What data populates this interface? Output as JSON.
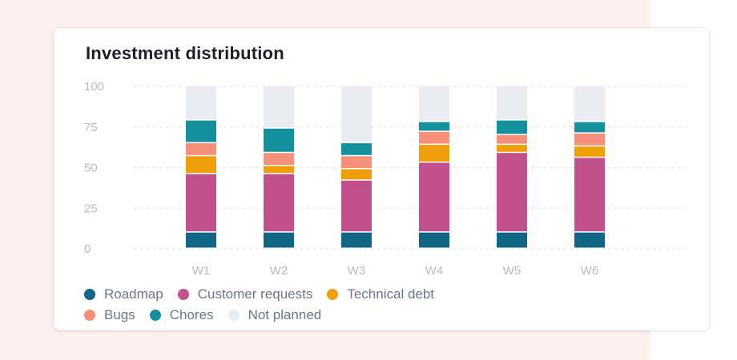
{
  "card": {
    "title": "Investment distribution"
  },
  "colors": {
    "Roadmap": "#0f6685",
    "Customer requests": "#c2508a",
    "Technical debt": "#ef9f0b",
    "Bugs": "#f6907a",
    "Chores": "#14919d",
    "Not planned": "#e9edf1"
  },
  "chart_data": {
    "type": "bar",
    "stacked": true,
    "categories": [
      "W1",
      "W2",
      "W3",
      "W4",
      "W5",
      "W6"
    ],
    "ylim": [
      0,
      100
    ],
    "yticks": [
      0,
      25,
      50,
      75,
      100
    ],
    "grid": true,
    "legend_position": "bottom",
    "series": [
      {
        "name": "Roadmap",
        "values": [
          10,
          10,
          10,
          10,
          10,
          10
        ]
      },
      {
        "name": "Customer requests",
        "values": [
          36,
          36,
          32,
          43,
          49,
          46
        ]
      },
      {
        "name": "Technical debt",
        "values": [
          11,
          5,
          7,
          11,
          5,
          7
        ]
      },
      {
        "name": "Bugs",
        "values": [
          8,
          8,
          8,
          8,
          6,
          8
        ]
      },
      {
        "name": "Chores",
        "values": [
          14,
          15,
          8,
          6,
          9,
          7
        ]
      },
      {
        "name": "Not planned",
        "values": [
          21,
          26,
          35,
          22,
          21,
          22
        ]
      }
    ]
  }
}
